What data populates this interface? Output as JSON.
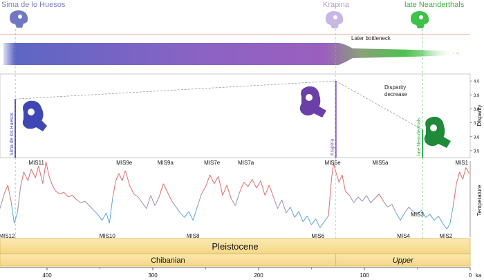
{
  "sites": [
    {
      "name": "Sima de lo Huesos",
      "age_ka": 430,
      "color": "#7b7fc2"
    },
    {
      "name": "Krapina",
      "age_ka": 127,
      "color": "#b39ad6"
    },
    {
      "name": "late Neanderthals",
      "age_ka": 45,
      "color": "#3cb043"
    }
  ],
  "annotations": {
    "bottleneck": "Later bottleneck",
    "disparity_decrease": "Disparity\ndecrease"
  },
  "chart_data": [
    {
      "type": "line",
      "ylabel": "Disparity",
      "ylim": [
        3.45,
        4.05
      ],
      "yticks": [
        "3.5",
        "3.6",
        "3.7",
        "3.8",
        "3.9",
        "4.0"
      ],
      "xlim": [
        455,
        0
      ],
      "points": [
        {
          "x": 430,
          "y": 3.87
        },
        {
          "x": 127,
          "y": 4.0
        },
        {
          "x": 45,
          "y": 3.65
        }
      ],
      "bars": [
        {
          "label": "Sima de los Huesos",
          "x": 430,
          "y": 3.87,
          "color": "#4a4fb0"
        },
        {
          "label": "Krapina",
          "x": 127,
          "y": 4.0,
          "color": "#7a55c0"
        },
        {
          "label": "late Neanderthals",
          "x": 45,
          "y": 3.65,
          "color": "#2fa84a"
        }
      ]
    },
    {
      "type": "line",
      "ylabel": "Temperature",
      "xlim": [
        455,
        0
      ],
      "ylim": [
        -3.2,
        1.8
      ],
      "series": [
        {
          "values": [
            [
              455,
              -0.6
            ],
            [
              450,
              -0.9
            ],
            [
              445,
              -1.4
            ],
            [
              440,
              -0.2
            ],
            [
              437,
              0.3
            ],
            [
              434,
              -0.8
            ],
            [
              431,
              -2.3
            ],
            [
              428,
              -1.6
            ],
            [
              425,
              0.2
            ],
            [
              422,
              1.2
            ],
            [
              418,
              0.6
            ],
            [
              415,
              1.4
            ],
            [
              411,
              0.8
            ],
            [
              408,
              1.6
            ],
            [
              404,
              0.4
            ],
            [
              401,
              1.9
            ],
            [
              398,
              0.9
            ],
            [
              395,
              0.3
            ],
            [
              392,
              -0.1
            ],
            [
              388,
              -0.3
            ],
            [
              384,
              -0.2
            ],
            [
              380,
              -0.5
            ],
            [
              376,
              -0.4
            ],
            [
              372,
              -0.7
            ],
            [
              368,
              -0.9
            ],
            [
              364,
              -0.8
            ],
            [
              360,
              -1.1
            ],
            [
              356,
              -1.4
            ],
            [
              352,
              -1.7
            ],
            [
              348,
              -2.1
            ],
            [
              344,
              -1.6
            ],
            [
              341,
              -2.3
            ],
            [
              338,
              -0.6
            ],
            [
              335,
              0.6
            ],
            [
              332,
              1.1
            ],
            [
              329,
              0.6
            ],
            [
              326,
              1.3
            ],
            [
              322,
              0.3
            ],
            [
              318,
              -0.3
            ],
            [
              314,
              -0.5
            ],
            [
              310,
              -0.9
            ],
            [
              306,
              -1.3
            ],
            [
              302,
              -0.4
            ],
            [
              298,
              -1.1
            ],
            [
              294,
              -0.5
            ],
            [
              290,
              0.4
            ],
            [
              286,
              -0.2
            ],
            [
              282,
              -0.8
            ],
            [
              278,
              -1.2
            ],
            [
              274,
              -1.6
            ],
            [
              270,
              -1.9
            ],
            [
              266,
              -1.5
            ],
            [
              262,
              -2.1
            ],
            [
              258,
              -1.2
            ],
            [
              254,
              -0.3
            ],
            [
              250,
              0.2
            ],
            [
              246,
              1.0
            ],
            [
              242,
              0.4
            ],
            [
              238,
              0.9
            ],
            [
              234,
              -0.4
            ],
            [
              230,
              0.3
            ],
            [
              226,
              -0.6
            ],
            [
              222,
              -1.1
            ],
            [
              218,
              -0.2
            ],
            [
              214,
              0.5
            ],
            [
              210,
              0.2
            ],
            [
              206,
              0.7
            ],
            [
              202,
              0.1
            ],
            [
              198,
              0.6
            ],
            [
              194,
              -0.4
            ],
            [
              190,
              0.3
            ],
            [
              186,
              -0.5
            ],
            [
              182,
              -1.3
            ],
            [
              178,
              -0.7
            ],
            [
              174,
              -1.6
            ],
            [
              170,
              -1.2
            ],
            [
              166,
              -1.9
            ],
            [
              162,
              -1.5
            ],
            [
              158,
              -2.2
            ],
            [
              154,
              -1.8
            ],
            [
              150,
              -2.4
            ],
            [
              146,
              -2.0
            ],
            [
              142,
              -2.6
            ],
            [
              138,
              -2.2
            ],
            [
              134,
              -1.8
            ],
            [
              131,
              0.8
            ],
            [
              129,
              1.8
            ],
            [
              127,
              1.2
            ],
            [
              124,
              0.5
            ],
            [
              121,
              1.0
            ],
            [
              118,
              -0.1
            ],
            [
              114,
              -0.4
            ],
            [
              110,
              -0.9
            ],
            [
              106,
              -0.5
            ],
            [
              102,
              -0.8
            ],
            [
              98,
              -0.4
            ],
            [
              94,
              -0.9
            ],
            [
              90,
              -0.6
            ],
            [
              86,
              -0.3
            ],
            [
              82,
              -0.8
            ],
            [
              78,
              -1.2
            ],
            [
              74,
              -1.0
            ],
            [
              70,
              -1.6
            ],
            [
              66,
              -2.1
            ],
            [
              62,
              -1.6
            ],
            [
              58,
              -1.2
            ],
            [
              54,
              -1.5
            ],
            [
              50,
              -1.7
            ],
            [
              46,
              -1.4
            ],
            [
              42,
              -1.9
            ],
            [
              38,
              -1.7
            ],
            [
              34,
              -2.1
            ],
            [
              30,
              -1.8
            ],
            [
              26,
              -2.3
            ],
            [
              22,
              -2.7
            ],
            [
              19,
              -2.3
            ],
            [
              16,
              -1.1
            ],
            [
              13,
              0.4
            ],
            [
              10,
              1.2
            ],
            [
              7,
              0.7
            ],
            [
              4,
              1.5
            ],
            [
              1,
              1.1
            ]
          ]
        }
      ],
      "annotations": [
        {
          "text": "MIS12",
          "x": 438,
          "pos": "low"
        },
        {
          "text": "MIS11",
          "x": 410,
          "pos": "high"
        },
        {
          "text": "MIS10",
          "x": 343,
          "pos": "low"
        },
        {
          "text": "MIS9e",
          "x": 327,
          "pos": "high"
        },
        {
          "text": "MIS9a",
          "x": 288,
          "pos": "high"
        },
        {
          "text": "MIS8",
          "x": 262,
          "pos": "low"
        },
        {
          "text": "MIS7e",
          "x": 244,
          "pos": "high"
        },
        {
          "text": "MIS7a",
          "x": 212,
          "pos": "high"
        },
        {
          "text": "MIS6",
          "x": 144,
          "pos": "low"
        },
        {
          "text": "MIS5e",
          "x": 130,
          "pos": "high"
        },
        {
          "text": "MIS5a",
          "x": 85,
          "pos": "high"
        },
        {
          "text": "MIS4",
          "x": 63,
          "pos": "low"
        },
        {
          "text": "MIS3",
          "x": 50,
          "pos": "mid"
        },
        {
          "text": "MIS2",
          "x": 23,
          "pos": "low"
        },
        {
          "text": "MIS1",
          "x": 8,
          "pos": "high"
        }
      ]
    }
  ],
  "timescale": {
    "epoch": "Pleistocene",
    "stages": [
      {
        "name": "Chibanian",
        "from": 455,
        "to": 127,
        "italic": false
      },
      {
        "name": "Upper",
        "from": 127,
        "to": 0,
        "italic": true
      }
    ]
  },
  "xaxis": {
    "ticks": [
      400,
      300,
      200,
      100,
      0
    ],
    "unit": "ka"
  }
}
